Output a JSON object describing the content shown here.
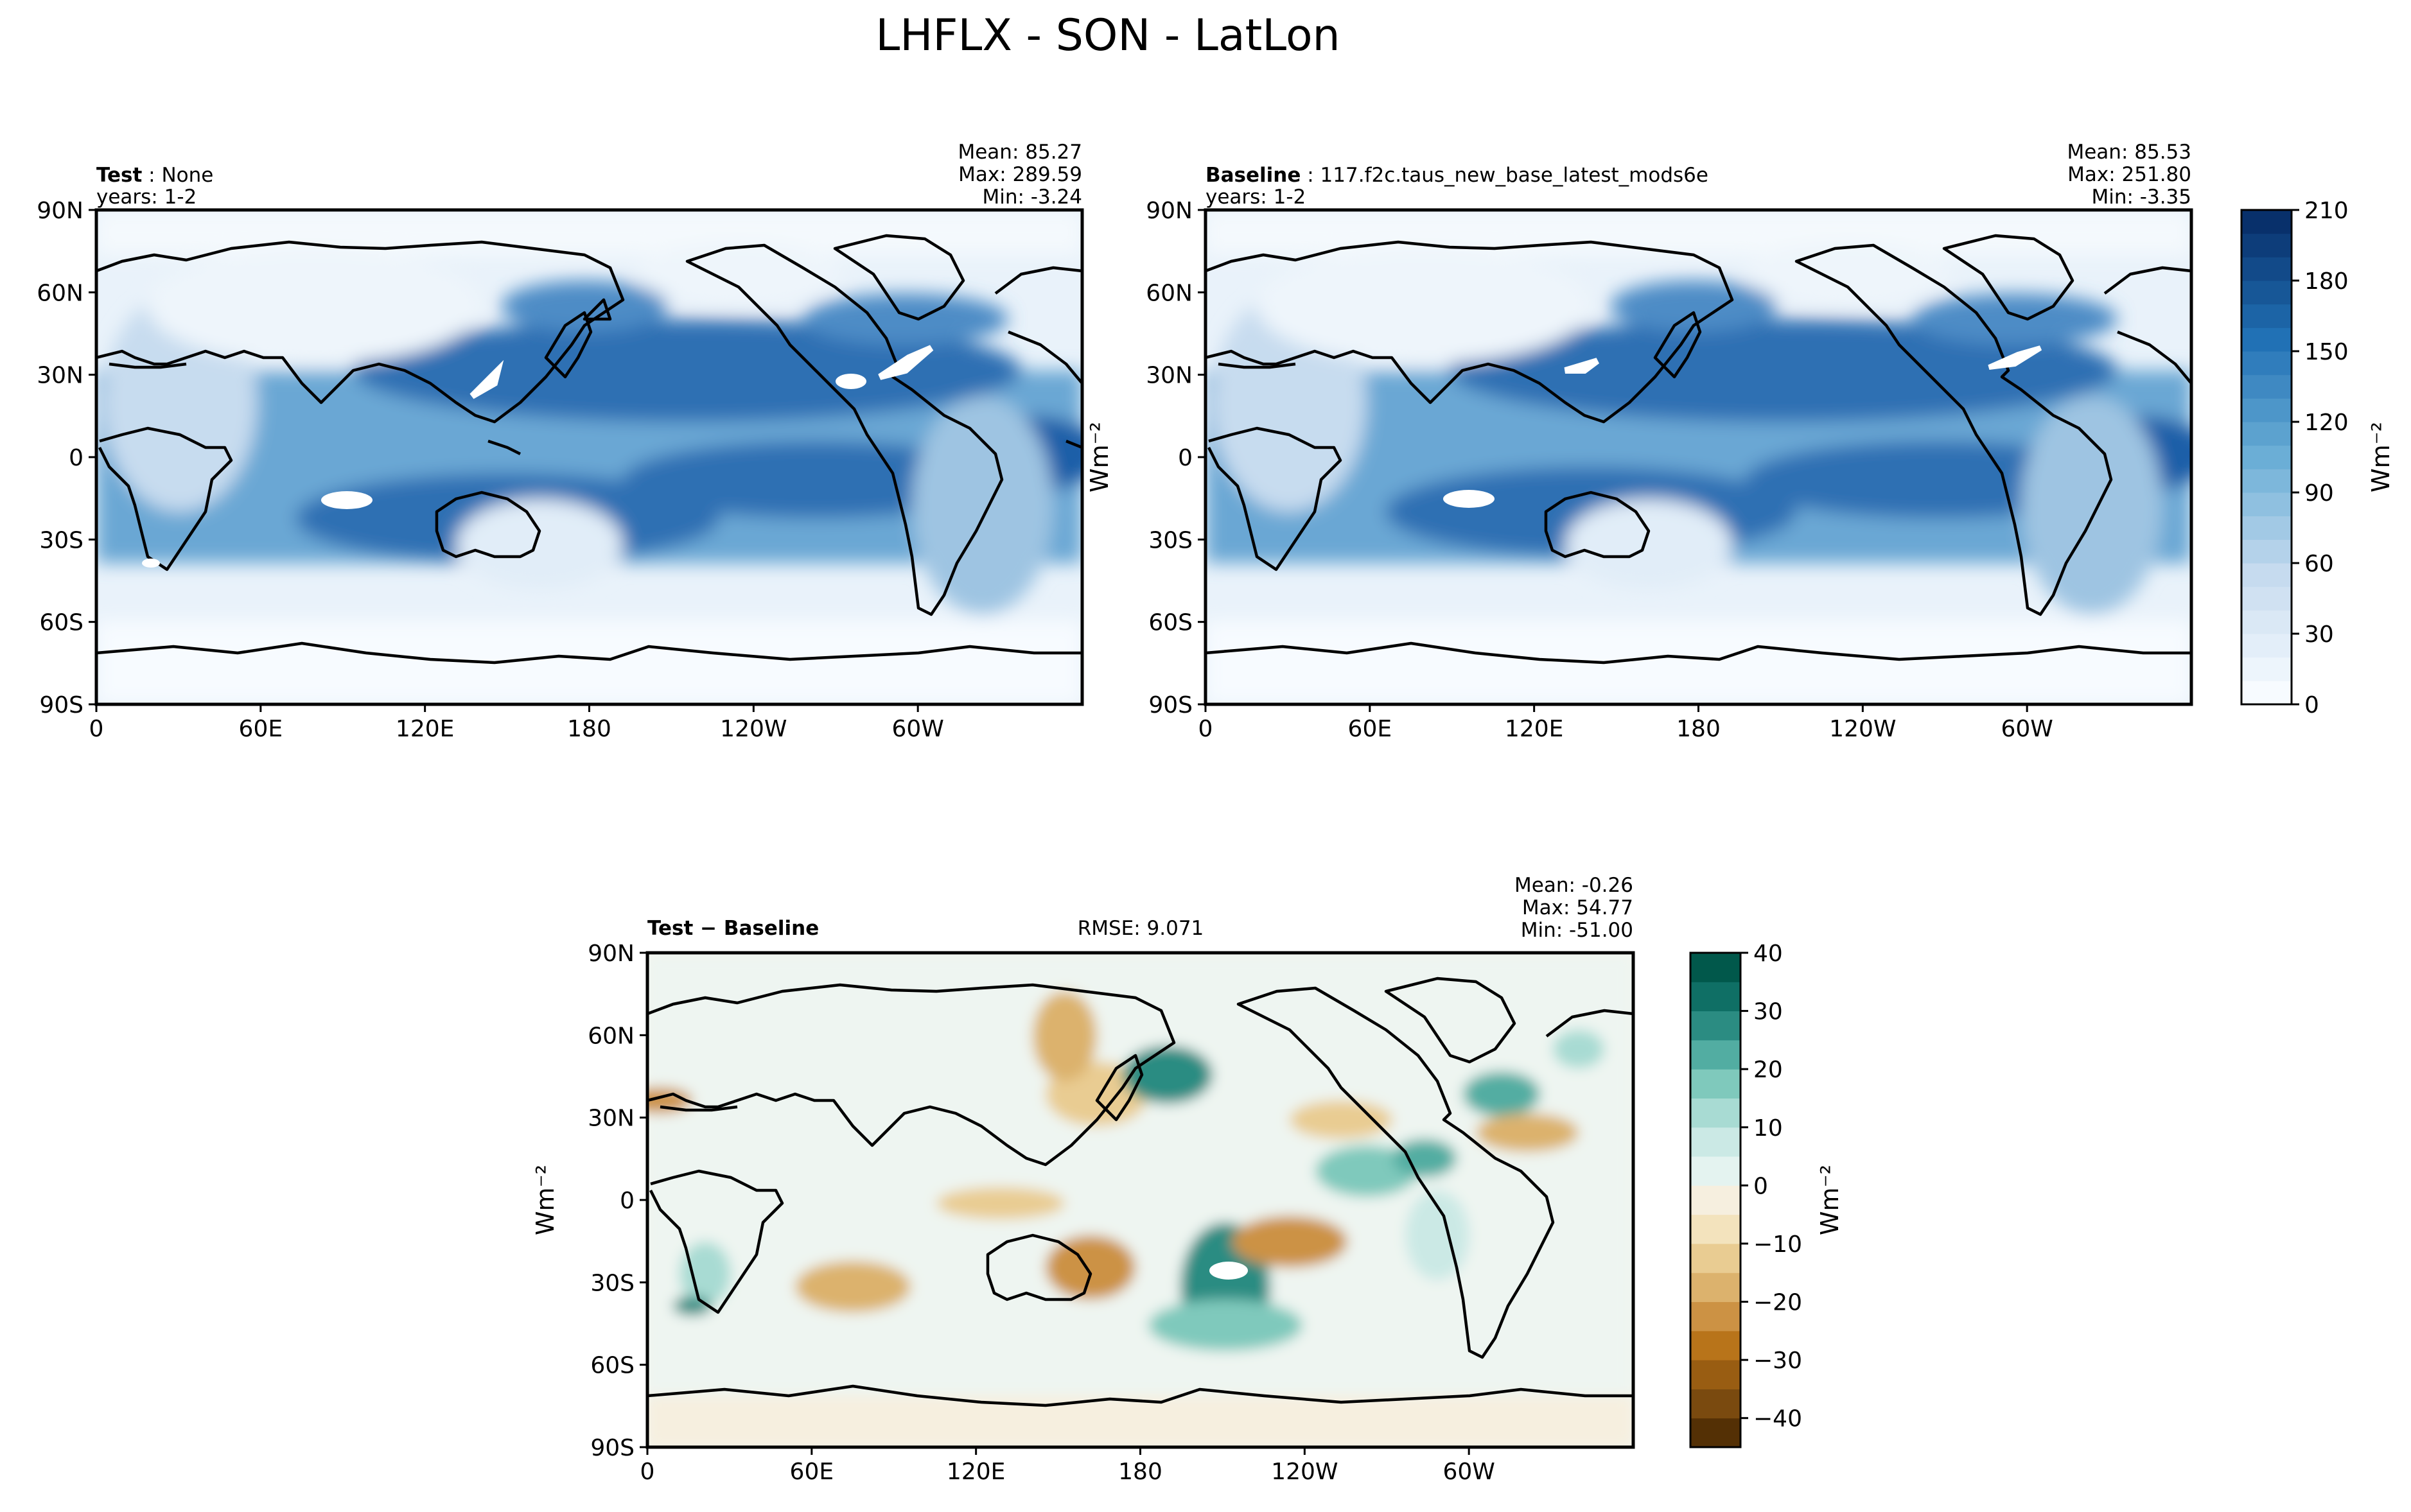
{
  "figure": {
    "title": "LHFLX - SON - LatLon"
  },
  "chart_data": [
    {
      "type": "heatmap",
      "panel": "test",
      "label_bold": "Test",
      "label_rest": " : None",
      "years": "years: 1-2",
      "stats": {
        "mean": "Mean: 85.27",
        "max": "Max: 289.59",
        "min": "Min: -3.24"
      },
      "x_ticks": [
        "0",
        "60E",
        "120E",
        "180",
        "120W",
        "60W"
      ],
      "x_tick_values": [
        0,
        60,
        120,
        180,
        240,
        300
      ],
      "y_ticks": [
        "90N",
        "60N",
        "30N",
        "0",
        "30S",
        "60S",
        "90S"
      ],
      "y_tick_values": [
        90,
        60,
        30,
        0,
        -30,
        -60,
        -90
      ],
      "xlim": [
        0,
        360
      ],
      "ylim": [
        -90,
        90
      ],
      "ylabel": "Wm⁻²"
    },
    {
      "type": "heatmap",
      "panel": "baseline",
      "label_bold": "Baseline",
      "label_rest": " : 117.f2c.taus_new_base_latest_mods6e",
      "years": "years: 1-2",
      "stats": {
        "mean": "Mean: 85.53",
        "max": "Max: 251.80",
        "min": "Min: -3.35"
      },
      "x_ticks": [
        "0",
        "60E",
        "120E",
        "180",
        "120W",
        "60W"
      ],
      "x_tick_values": [
        0,
        60,
        120,
        180,
        240,
        300
      ],
      "y_ticks": [
        "90N",
        "60N",
        "30N",
        "0",
        "30S",
        "60S",
        "90S"
      ],
      "y_tick_values": [
        90,
        60,
        30,
        0,
        -30,
        -60,
        -90
      ],
      "xlim": [
        0,
        360
      ],
      "ylim": [
        -90,
        90
      ],
      "colorbar": {
        "label": "Wm⁻²",
        "range": [
          0,
          210
        ],
        "ticks": [
          "0",
          "30",
          "60",
          "90",
          "120",
          "150",
          "180",
          "210"
        ],
        "tick_values": [
          0,
          30,
          60,
          90,
          120,
          150,
          180,
          210
        ],
        "levels": 21,
        "color_low": "#f7fbff",
        "color_high": "#08306b"
      }
    },
    {
      "type": "heatmap",
      "panel": "difference",
      "label_bold": "Test − Baseline",
      "rmse": "RMSE: 9.071",
      "stats": {
        "mean": "Mean: -0.26",
        "max": "Max: 54.77",
        "min": "Min: -51.00"
      },
      "x_ticks": [
        "0",
        "60E",
        "120E",
        "180",
        "120W",
        "60W"
      ],
      "x_tick_values": [
        0,
        60,
        120,
        180,
        240,
        300
      ],
      "y_ticks": [
        "90N",
        "60N",
        "30N",
        "0",
        "30S",
        "60S",
        "90S"
      ],
      "y_tick_values": [
        90,
        60,
        30,
        0,
        -30,
        -60,
        -90
      ],
      "xlim": [
        0,
        360
      ],
      "ylim": [
        -90,
        90
      ],
      "ylabel": "Wm⁻²",
      "colorbar": {
        "label": "Wm⁻²",
        "range": [
          -45,
          40
        ],
        "ticks": [
          "40",
          "30",
          "20",
          "10",
          "0",
          "−10",
          "−20",
          "−30",
          "−40"
        ],
        "tick_values": [
          40,
          30,
          20,
          10,
          0,
          -10,
          -20,
          -30,
          -40
        ],
        "levels": [
          -45,
          -40,
          -35,
          -30,
          -25,
          -20,
          -15,
          -10,
          -5,
          0,
          5,
          10,
          15,
          20,
          25,
          30,
          35,
          40
        ],
        "colors": [
          "#543005",
          "#7a4a0f",
          "#995d12",
          "#b8741a",
          "#cc9244",
          "#dcb26d",
          "#e9cc92",
          "#f3e3bd",
          "#f6efdf",
          "#e4f3f0",
          "#cbe9e5",
          "#a8dbd3",
          "#7fc9bc",
          "#52ada2",
          "#2b8c82",
          "#0f6f65",
          "#01584b"
        ]
      }
    }
  ]
}
